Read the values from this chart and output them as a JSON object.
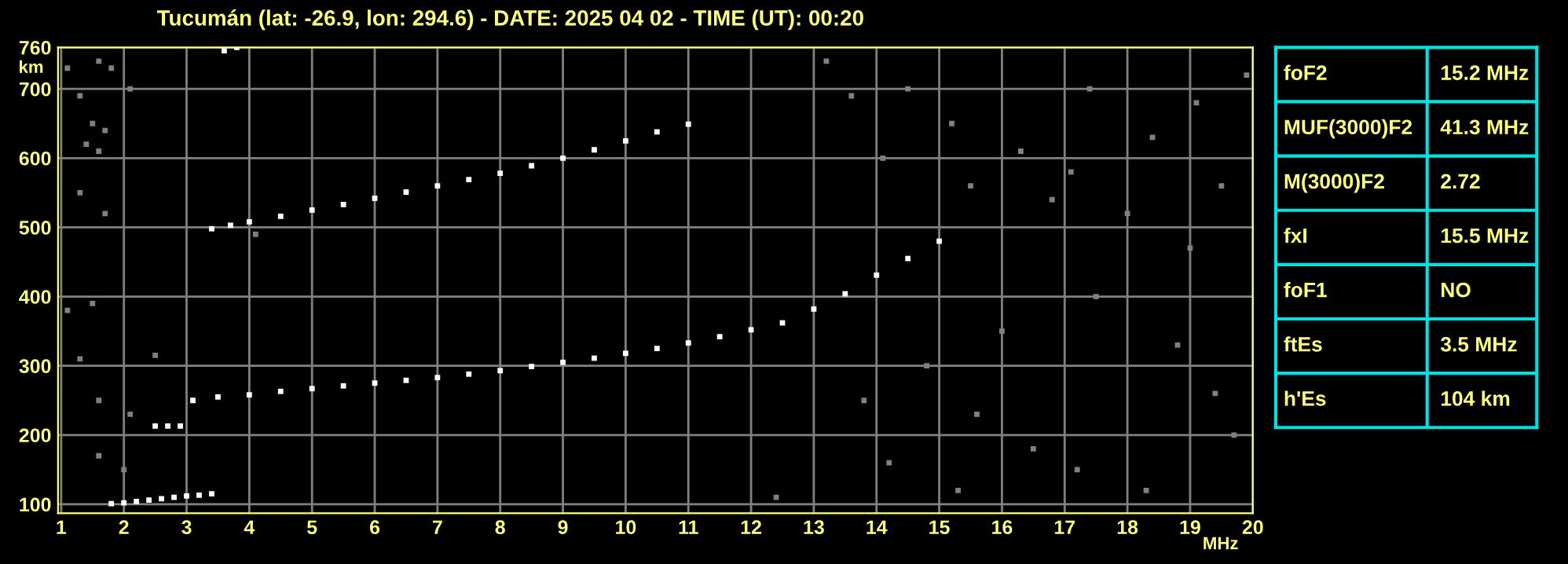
{
  "chart_data": [
    {
      "type": "scatter",
      "title": "Tucumán (lat: -26.9, lon: 294.6) - DATE: 2025 04 02 - TIME (UT): 00:20",
      "xlabel": "MHz",
      "ylabel": "km",
      "xlim": [
        0.95,
        20
      ],
      "ylim": [
        87,
        760
      ],
      "xticks": [
        1,
        2,
        3,
        4,
        5,
        6,
        7,
        8,
        9,
        10,
        11,
        12,
        13,
        14,
        15,
        16,
        17,
        18,
        19,
        20
      ],
      "yticks": [
        100,
        200,
        300,
        400,
        500,
        600,
        700,
        760
      ],
      "grid": true,
      "marker": "square",
      "series": [
        {
          "color": "#ffffff",
          "x": [
            3.1,
            3.5,
            4,
            4.5,
            5,
            5.5,
            6,
            6.5,
            7,
            7.5,
            8,
            8.5,
            9,
            9.5,
            10,
            10.5,
            11,
            11.5,
            12,
            12.5,
            13,
            13.5,
            14,
            14.5,
            15
          ],
          "values": [
            250,
            255,
            258,
            263,
            267,
            271,
            275,
            279,
            283,
            288,
            293,
            299,
            305,
            311,
            318,
            325,
            333,
            342,
            352,
            362,
            382,
            404,
            431,
            455,
            480
          ]
        },
        {
          "color": "#ffffff",
          "x": [
            3.4,
            3.7,
            4,
            4.5,
            5,
            5.5,
            6,
            6.5,
            7,
            7.5,
            8,
            8.5,
            9,
            9.5,
            10,
            10.5,
            11
          ],
          "values": [
            498,
            503,
            508,
            516,
            525,
            533,
            542,
            551,
            560,
            569,
            578,
            589,
            600,
            612,
            625,
            638,
            649
          ]
        },
        {
          "color": "#ffffff",
          "x": [
            1.8,
            2.0,
            2.2,
            2.4,
            2.6,
            2.8,
            3.0,
            3.2,
            3.4,
            2.5,
            2.7,
            2.9,
            3.6,
            3.8
          ],
          "values": [
            101,
            102,
            104,
            106,
            108,
            110,
            112,
            113,
            115,
            213,
            213,
            213,
            755,
            760
          ]
        },
        {
          "color": "#808080",
          "x": [
            1.1,
            1.3,
            1.4,
            1.5,
            1.6,
            1.7,
            1.8,
            1.6,
            1.3,
            1.7,
            1.1,
            1.5,
            1.3,
            1.6,
            2.1,
            1.6,
            2.0,
            2.5,
            4.1,
            2.1,
            13.2,
            14.5,
            15.2,
            16.3,
            17.1,
            18.4,
            19.1,
            19.9,
            14.8,
            15.6,
            16.5,
            17.2,
            18.3,
            19.4,
            16.0,
            17.5,
            18.8,
            19.7,
            15.3,
            14.2,
            13.8,
            12.4,
            19.0,
            18.0,
            16.8,
            15.5,
            14.1,
            17.4,
            13.6,
            19.5
          ],
          "values": [
            730,
            690,
            620,
            650,
            610,
            640,
            730,
            740,
            550,
            520,
            380,
            390,
            310,
            250,
            230,
            170,
            150,
            315,
            490,
            700,
            740,
            700,
            650,
            610,
            580,
            630,
            680,
            720,
            300,
            230,
            180,
            150,
            120,
            260,
            350,
            400,
            330,
            200,
            120,
            160,
            250,
            110,
            470,
            520,
            540,
            560,
            600,
            700,
            690,
            560
          ]
        }
      ]
    },
    {
      "type": "other",
      "annotations": [
        "foF2",
        "15.2 MHz",
        "MUF(3000)F2",
        "41.3 MHz",
        "M(3000)F2",
        "2.72",
        "fxI",
        "15.5 MHz",
        "foF1",
        "NO",
        "ftEs",
        "3.5 MHz",
        "h'Es",
        "104 km"
      ]
    }
  ]
}
